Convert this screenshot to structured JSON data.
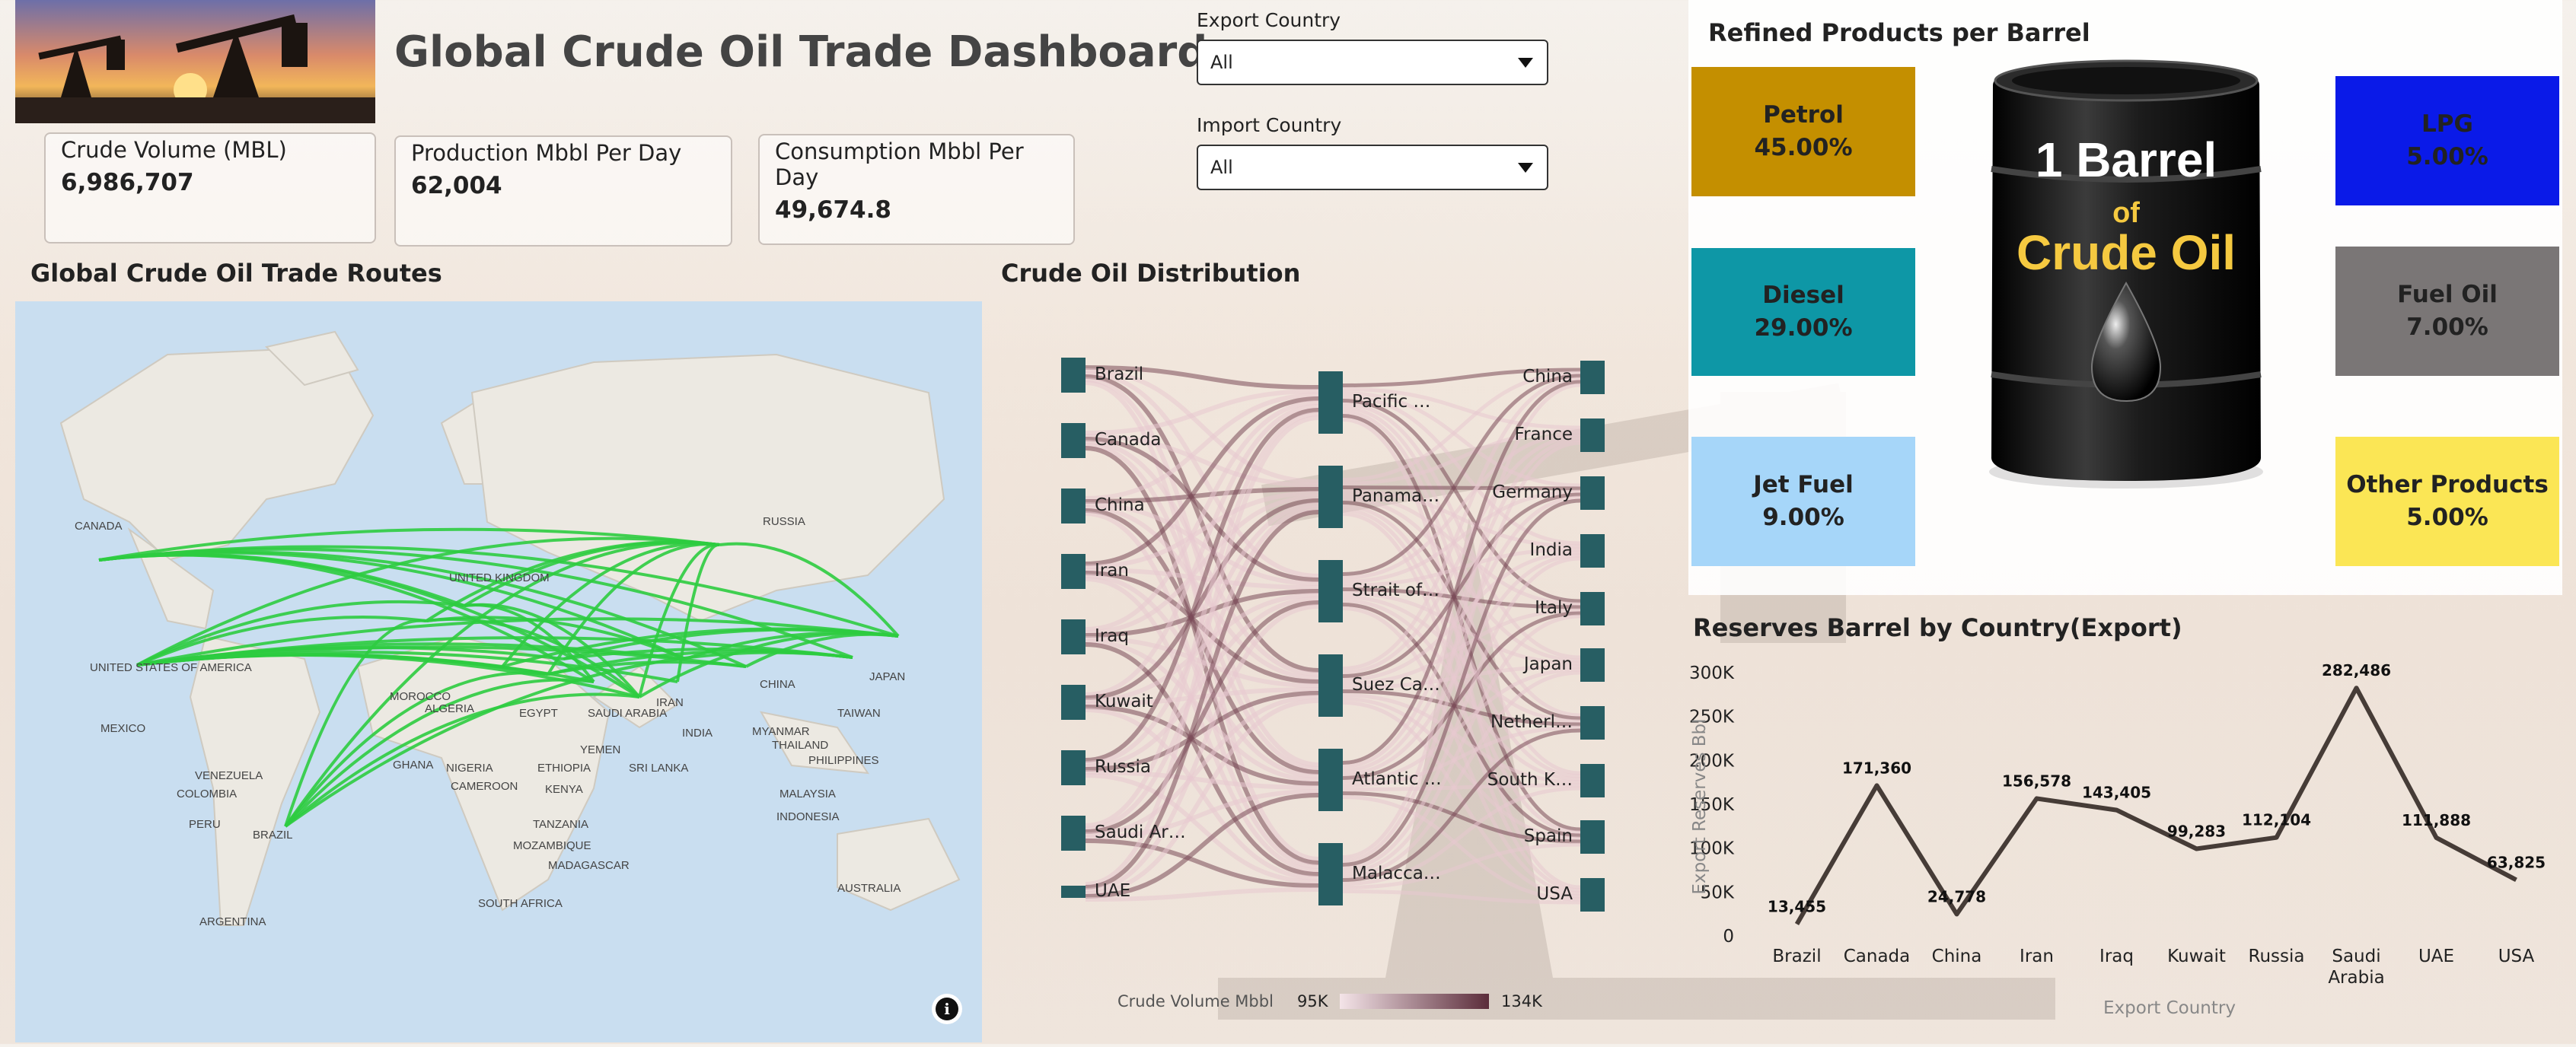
{
  "header": {
    "title": "Global Crude Oil Trade Dashboard"
  },
  "kpis": [
    {
      "label": "Crude Volume (MBL)",
      "value": "6,986,707"
    },
    {
      "label": "Production Mbbl Per Day",
      "value": "62,004"
    },
    {
      "label": "Consumption Mbbl Per Day",
      "value": "49,674.8"
    }
  ],
  "filters": {
    "export": {
      "label": "Export Country",
      "value": "All"
    },
    "import": {
      "label": "Import Country",
      "value": "All"
    }
  },
  "map": {
    "title": "Global Crude Oil Trade Routes",
    "places": [
      "CANADA",
      "UNITED STATES OF AMERICA",
      "MEXICO",
      "VENEZUELA",
      "COLOMBIA",
      "PERU",
      "BRAZIL",
      "ARGENTINA",
      "RUSSIA",
      "UNITED KINGDOM",
      "ALGERIA",
      "EGYPT",
      "SAUDI ARABIA",
      "IRAN",
      "INDIA",
      "CHINA",
      "JAPAN",
      "TAIWAN",
      "MYANMAR",
      "THAILAND",
      "PHILIPPINES",
      "MALAYSIA",
      "INDONESIA",
      "AUSTRALIA",
      "GHANA",
      "NIGERIA",
      "CAMEROON",
      "ETHIOPIA",
      "KENYA",
      "TANZANIA",
      "MOZAMBIQUE",
      "MADAGASCAR",
      "SOUTH AFRICA",
      "SRI LANKA",
      "YEMEN",
      "MOROCCO"
    ],
    "route_color": "#2ecc40"
  },
  "sankey": {
    "title": "Crude Oil Distribution",
    "sources": [
      "Brazil",
      "Canada",
      "China",
      "Iran",
      "Iraq",
      "Kuwait",
      "Russia",
      "Saudi Ar…",
      "UAE"
    ],
    "routes": [
      "Pacific …",
      "Panama…",
      "Strait of…",
      "Suez Ca…",
      "Atlantic …",
      "Malacca…"
    ],
    "destinations": [
      "China",
      "France",
      "Germany",
      "India",
      "Italy",
      "Japan",
      "Netherl…",
      "South K…",
      "Spain",
      "USA"
    ],
    "legend": {
      "label": "Crude Volume Mbbl",
      "min": "95K",
      "max": "134K"
    },
    "node_color": "#275e63",
    "link_color_light": "#e8c8d0",
    "link_color_dark": "#7a4a58"
  },
  "refined": {
    "title": "Refined Products per Barrel",
    "barrel_text": [
      "1 Barrel",
      "of",
      "Crude Oil"
    ],
    "products": [
      {
        "name": "Petrol",
        "value": "45.00%",
        "color": "#c48f00"
      },
      {
        "name": "Diesel",
        "value": "29.00%",
        "color": "#0e97a6"
      },
      {
        "name": "Jet Fuel",
        "value": "9.00%",
        "color": "#a6d6f9"
      },
      {
        "name": "LPG",
        "value": "5.00%",
        "color": "#0a1ae8"
      },
      {
        "name": "Fuel Oil",
        "value": "7.00%",
        "color": "#7a7676"
      },
      {
        "name": "Other Products",
        "value": "5.00%",
        "color": "#fbe655"
      }
    ]
  },
  "chart_data": {
    "type": "line",
    "title": "Reserves Barrel by Country(Export)",
    "xlabel": "Export Country",
    "ylabel": "Export Reserves Bbl",
    "categories": [
      "Brazil",
      "Canada",
      "China",
      "Iran",
      "Iraq",
      "Kuwait",
      "Russia",
      "Saudi Arabia",
      "UAE",
      "USA"
    ],
    "values": [
      13455,
      171360,
      24778,
      156578,
      143405,
      99283,
      112104,
      282486,
      111888,
      63825
    ],
    "data_labels": [
      "13,455",
      "171,360",
      "24,778",
      "156,578",
      "143,405",
      "99,283",
      "112,104",
      "282,486",
      "111,888",
      "63,825"
    ],
    "ylim": [
      0,
      300000
    ],
    "yticks": [
      "0",
      "50K",
      "100K",
      "150K",
      "200K",
      "250K",
      "300K"
    ],
    "line_color": "#463c37"
  }
}
